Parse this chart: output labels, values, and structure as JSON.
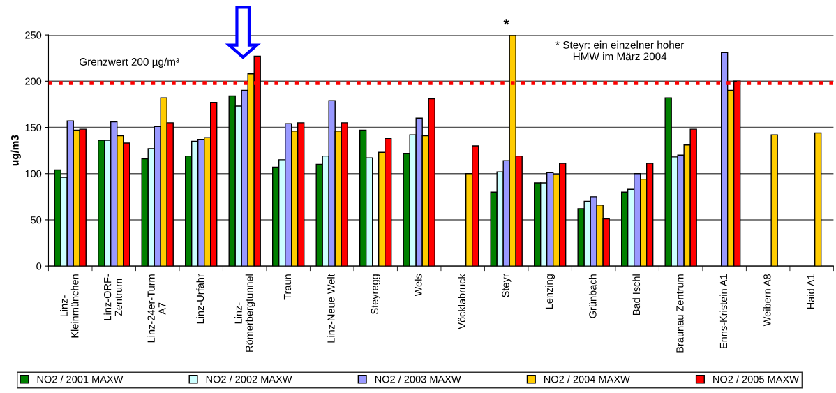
{
  "chart_data": {
    "type": "bar",
    "ylabel": "ug/m3",
    "categories": [
      "Linz-\nKleinmünchen",
      "Linz-ORF-\nZentrum",
      "Linz-24er-Turm\nA7",
      "Linz-Urfahr",
      "Linz-\nRömerbergtunnel",
      "Traun",
      "Linz-Neue Welt",
      "Steyregg",
      "Wels",
      "Vöcklabruck",
      "Steyr",
      "Lenzing",
      "Grünbach",
      "Bad Ischl",
      "Braunau Zentrum",
      "Enns-Kristein A1",
      "Weibern A8",
      "Haid A1"
    ],
    "series": [
      {
        "name": "NO2 / 2001 MAXW",
        "color": "#008000",
        "values": [
          104,
          136,
          116,
          119,
          184,
          107,
          110,
          147,
          122,
          null,
          80,
          90,
          62,
          80,
          182,
          null,
          null,
          null
        ]
      },
      {
        "name": "NO2 / 2002 MAXW",
        "color": "#ccffff",
        "values": [
          96,
          136,
          127,
          135,
          173,
          115,
          119,
          117,
          142,
          null,
          102,
          90,
          70,
          83,
          118,
          null,
          null,
          null
        ]
      },
      {
        "name": "NO2 / 2003 MAXW",
        "color": "#9999ff",
        "values": [
          157,
          156,
          151,
          137,
          190,
          154,
          179,
          null,
          160,
          null,
          114,
          101,
          75,
          100,
          120,
          231,
          null,
          null
        ]
      },
      {
        "name": "NO2 / 2004 MAXW",
        "color": "#ffcc00",
        "values": [
          147,
          141,
          182,
          139,
          208,
          146,
          146,
          123,
          141,
          100,
          250,
          99,
          66,
          94,
          131,
          190,
          142,
          144
        ]
      },
      {
        "name": "NO2 / 2005 MAXW",
        "color": "#ff0000",
        "values": [
          148,
          133,
          155,
          177,
          227,
          155,
          155,
          138,
          181,
          130,
          119,
          111,
          51,
          111,
          148,
          200,
          null,
          null
        ]
      }
    ],
    "ylim": [
      0,
      250
    ],
    "yticks": [
      0,
      50,
      100,
      150,
      200,
      250
    ],
    "grid": "y",
    "legend": "bottom",
    "ref_lines": [
      {
        "axis": "y",
        "value": 198,
        "label": "Grenzwert 200 µg/m³",
        "color": "#ff0000",
        "line_style": "dotted"
      }
    ],
    "annotations": [
      "*",
      "* Steyr: ein einzelner hoher\nHMW im März 2004"
    ]
  }
}
